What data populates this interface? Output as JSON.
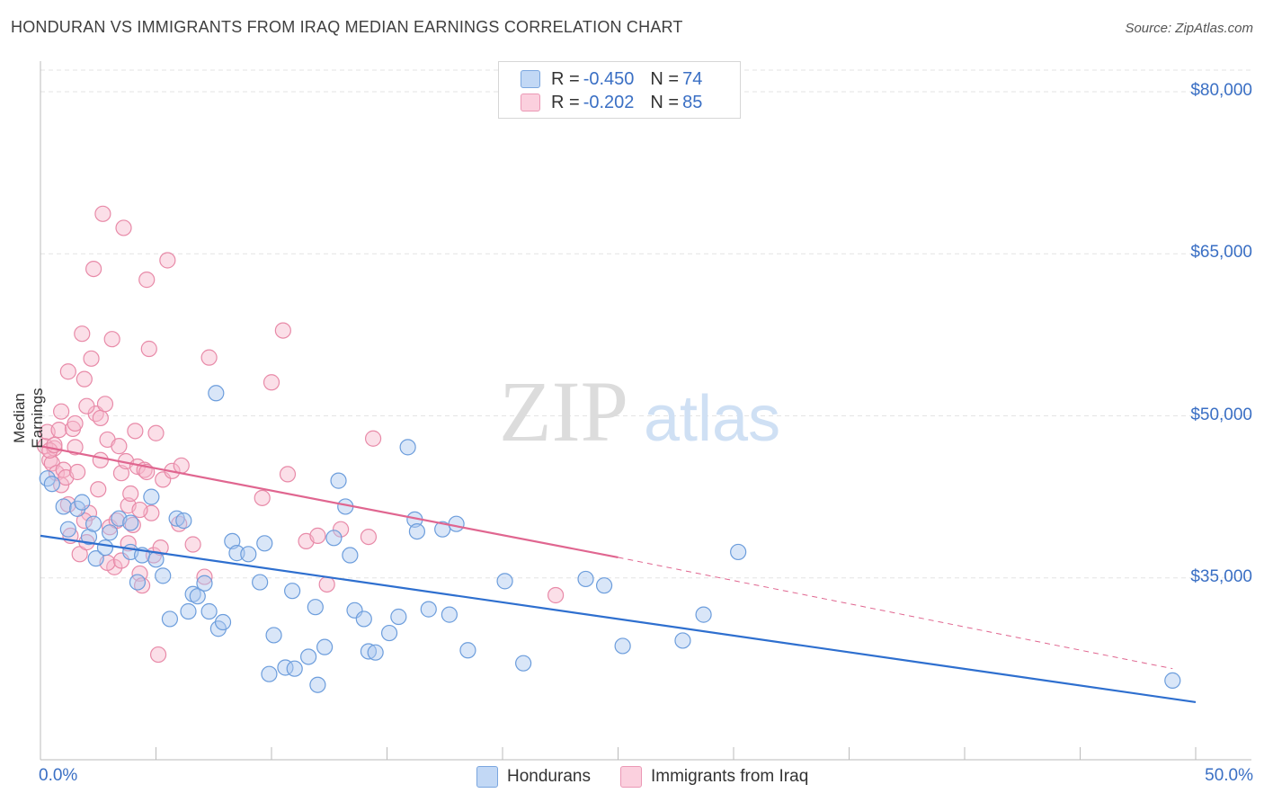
{
  "title": "HONDURAN VS IMMIGRANTS FROM IRAQ MEDIAN EARNINGS CORRELATION CHART",
  "source": "Source: ZipAtlas.com",
  "watermark": {
    "zip": "ZIP",
    "atlas": "atlas"
  },
  "legend_top": {
    "rows": [
      {
        "r_label": "R = ",
        "r_value": "-0.450",
        "n_label": "N = ",
        "n_value": "74"
      },
      {
        "r_label": "R = ",
        "r_value": "-0.202",
        "n_label": "N = ",
        "n_value": "85"
      }
    ]
  },
  "legend_bottom": [
    "Hondurans",
    "Immigrants from Iraq"
  ],
  "colors": {
    "blue_fill": "#aac8f0",
    "blue_stroke": "#6c9ddc",
    "blue_line": "#2e6fcf",
    "pink_fill": "#f6b9cc",
    "pink_stroke": "#e88aa8",
    "pink_line": "#e06690",
    "grid": "#e3e3e3",
    "axis_text": "#3a6fc4"
  },
  "chart_data": {
    "type": "scatter",
    "title": "HONDURAN VS IMMIGRANTS FROM IRAQ MEDIAN EARNINGS CORRELATION CHART",
    "xlabel": "",
    "ylabel": "Median Earnings",
    "xlim": [
      0,
      50
    ],
    "ylim": [
      20000,
      82000
    ],
    "x_tick_labels": [
      "0.0%",
      "50.0%"
    ],
    "y_ticks": [
      35000,
      50000,
      65000,
      80000
    ],
    "y_tick_labels": [
      "$35,000",
      "$50,000",
      "$65,000",
      "$80,000"
    ],
    "grid": true,
    "legend_position": "top-center",
    "series": [
      {
        "name": "Hondurans",
        "r": -0.45,
        "n": 74,
        "trend": {
          "x": [
            0,
            50
          ],
          "y": [
            38900,
            23500
          ]
        },
        "points": [
          [
            0.3,
            44200
          ],
          [
            0.5,
            43700
          ],
          [
            1.0,
            41600
          ],
          [
            1.2,
            39500
          ],
          [
            1.6,
            41400
          ],
          [
            1.8,
            42000
          ],
          [
            2.1,
            38800
          ],
          [
            2.3,
            40000
          ],
          [
            2.4,
            36800
          ],
          [
            2.8,
            37800
          ],
          [
            3.0,
            39200
          ],
          [
            3.4,
            40500
          ],
          [
            3.9,
            40100
          ],
          [
            3.9,
            37400
          ],
          [
            4.2,
            34600
          ],
          [
            4.4,
            37100
          ],
          [
            4.8,
            42500
          ],
          [
            5.0,
            36700
          ],
          [
            5.3,
            35200
          ],
          [
            5.6,
            31200
          ],
          [
            5.9,
            40500
          ],
          [
            6.2,
            40300
          ],
          [
            6.4,
            31900
          ],
          [
            6.6,
            33500
          ],
          [
            6.8,
            33300
          ],
          [
            7.1,
            34500
          ],
          [
            7.3,
            31900
          ],
          [
            7.7,
            30300
          ],
          [
            7.9,
            30900
          ],
          [
            7.6,
            52100
          ],
          [
            8.3,
            38400
          ],
          [
            8.5,
            37300
          ],
          [
            9.0,
            37200
          ],
          [
            9.5,
            34600
          ],
          [
            9.7,
            38200
          ],
          [
            9.9,
            26100
          ],
          [
            10.1,
            29700
          ],
          [
            10.6,
            26700
          ],
          [
            10.9,
            33800
          ],
          [
            11.0,
            26600
          ],
          [
            11.6,
            27700
          ],
          [
            11.9,
            32300
          ],
          [
            12.0,
            25100
          ],
          [
            12.3,
            28600
          ],
          [
            12.7,
            38700
          ],
          [
            12.9,
            44000
          ],
          [
            13.2,
            41600
          ],
          [
            13.4,
            37100
          ],
          [
            13.6,
            32000
          ],
          [
            14.0,
            31200
          ],
          [
            14.2,
            28200
          ],
          [
            14.5,
            28100
          ],
          [
            15.1,
            29900
          ],
          [
            15.5,
            31400
          ],
          [
            15.9,
            47100
          ],
          [
            16.2,
            40400
          ],
          [
            16.3,
            39300
          ],
          [
            16.8,
            32100
          ],
          [
            17.4,
            39500
          ],
          [
            17.7,
            31600
          ],
          [
            18.0,
            40000
          ],
          [
            18.5,
            28300
          ],
          [
            20.1,
            34700
          ],
          [
            20.9,
            27100
          ],
          [
            23.6,
            34900
          ],
          [
            24.4,
            34300
          ],
          [
            25.2,
            28700
          ],
          [
            27.8,
            29200
          ],
          [
            28.7,
            31600
          ],
          [
            30.2,
            37400
          ],
          [
            49.0,
            25500
          ]
        ]
      },
      {
        "name": "Immigrants from Iraq",
        "r": -0.202,
        "n": 85,
        "trend": {
          "x": [
            0,
            25
          ],
          "y": [
            47200,
            36900
          ]
        },
        "trend_dashed": {
          "x": [
            25,
            49
          ],
          "y": [
            36900,
            26600
          ]
        },
        "points": [
          [
            0.2,
            47200
          ],
          [
            0.3,
            48500
          ],
          [
            0.4,
            45900
          ],
          [
            0.5,
            45600
          ],
          [
            0.6,
            47000
          ],
          [
            0.7,
            44700
          ],
          [
            0.8,
            48700
          ],
          [
            0.9,
            43600
          ],
          [
            1.0,
            45000
          ],
          [
            1.1,
            44300
          ],
          [
            1.2,
            41800
          ],
          [
            1.2,
            54100
          ],
          [
            1.4,
            48800
          ],
          [
            1.5,
            49300
          ],
          [
            1.6,
            44800
          ],
          [
            1.7,
            37200
          ],
          [
            1.8,
            57600
          ],
          [
            1.9,
            53400
          ],
          [
            2.0,
            38300
          ],
          [
            2.1,
            41000
          ],
          [
            2.2,
            55300
          ],
          [
            2.3,
            63600
          ],
          [
            2.4,
            50200
          ],
          [
            2.5,
            43200
          ],
          [
            2.6,
            49800
          ],
          [
            2.7,
            68700
          ],
          [
            2.8,
            51100
          ],
          [
            2.9,
            47800
          ],
          [
            3.0,
            39700
          ],
          [
            3.1,
            57100
          ],
          [
            3.2,
            36000
          ],
          [
            3.3,
            40300
          ],
          [
            3.4,
            47200
          ],
          [
            3.5,
            44700
          ],
          [
            3.6,
            67400
          ],
          [
            3.7,
            45800
          ],
          [
            3.8,
            41700
          ],
          [
            3.9,
            42800
          ],
          [
            4.0,
            39900
          ],
          [
            4.1,
            48600
          ],
          [
            4.2,
            45300
          ],
          [
            4.3,
            35400
          ],
          [
            4.4,
            34300
          ],
          [
            4.5,
            45000
          ],
          [
            4.6,
            62600
          ],
          [
            4.7,
            56200
          ],
          [
            4.8,
            41000
          ],
          [
            4.9,
            37100
          ],
          [
            5.0,
            48400
          ],
          [
            5.1,
            27900
          ],
          [
            5.3,
            44100
          ],
          [
            5.5,
            64400
          ],
          [
            5.7,
            44900
          ],
          [
            6.0,
            40000
          ],
          [
            6.6,
            38100
          ],
          [
            7.1,
            35100
          ],
          [
            7.3,
            55400
          ],
          [
            9.6,
            42400
          ],
          [
            10.0,
            53100
          ],
          [
            10.5,
            57900
          ],
          [
            10.7,
            44600
          ],
          [
            11.5,
            38400
          ],
          [
            12.0,
            38900
          ],
          [
            12.4,
            34400
          ],
          [
            13.0,
            39500
          ],
          [
            14.2,
            38800
          ],
          [
            14.4,
            47900
          ],
          [
            22.3,
            33400
          ],
          [
            0.4,
            46800
          ],
          [
            1.3,
            38900
          ],
          [
            2.0,
            50900
          ],
          [
            2.9,
            36400
          ],
          [
            3.5,
            36600
          ],
          [
            4.3,
            41300
          ],
          [
            5.2,
            37800
          ],
          [
            6.1,
            45400
          ],
          [
            0.6,
            47300
          ],
          [
            1.5,
            47100
          ],
          [
            2.6,
            45900
          ],
          [
            3.8,
            38200
          ],
          [
            4.6,
            44800
          ],
          [
            0.9,
            50400
          ],
          [
            1.9,
            40300
          ]
        ]
      }
    ]
  }
}
